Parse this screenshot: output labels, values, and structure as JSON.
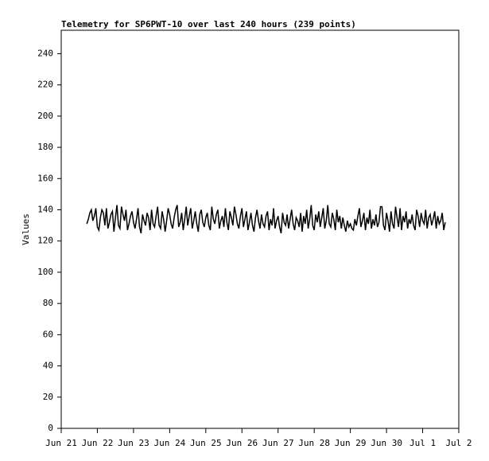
{
  "chart_data": {
    "type": "line",
    "title": "Telemetry for SP6PWT-10 over last 240 hours (239 points)",
    "y_label": "Values",
    "xlim": [
      0,
      264
    ],
    "xticks": [
      {
        "value": 0,
        "label": "Jun 21"
      },
      {
        "value": 24,
        "label": "Jun 22"
      },
      {
        "value": 48,
        "label": "Jun 23"
      },
      {
        "value": 72,
        "label": "Jun 24"
      },
      {
        "value": 96,
        "label": "Jun 25"
      },
      {
        "value": 120,
        "label": "Jun 26"
      },
      {
        "value": 144,
        "label": "Jun 27"
      },
      {
        "value": 168,
        "label": "Jun 28"
      },
      {
        "value": 192,
        "label": "Jun 29"
      },
      {
        "value": 216,
        "label": "Jun 30"
      },
      {
        "value": 240,
        "label": "Jul 1"
      },
      {
        "value": 264,
        "label": "Jul 2"
      }
    ],
    "ylim": [
      0,
      255
    ],
    "yticks": [
      0,
      20,
      40,
      60,
      80,
      100,
      120,
      140,
      160,
      180,
      200,
      220,
      240
    ],
    "color": "#000000",
    "x": [
      17,
      18,
      19,
      20,
      21,
      22,
      23,
      24,
      25,
      26,
      27,
      28,
      29,
      30,
      31,
      32,
      33,
      34,
      35,
      36,
      37,
      38,
      39,
      40,
      41,
      42,
      43,
      44,
      45,
      46,
      47,
      48,
      49,
      50,
      51,
      52,
      53,
      54,
      55,
      56,
      57,
      58,
      59,
      60,
      61,
      62,
      63,
      64,
      65,
      66,
      67,
      68,
      69,
      70,
      71,
      72,
      73,
      74,
      75,
      76,
      77,
      78,
      79,
      80,
      81,
      82,
      83,
      84,
      85,
      86,
      87,
      88,
      89,
      90,
      91,
      92,
      93,
      94,
      95,
      96,
      97,
      98,
      99,
      100,
      101,
      102,
      103,
      104,
      105,
      106,
      107,
      108,
      109,
      110,
      111,
      112,
      113,
      114,
      115,
      116,
      117,
      118,
      119,
      120,
      121,
      122,
      123,
      124,
      125,
      126,
      127,
      128,
      129,
      130,
      131,
      132,
      133,
      134,
      135,
      136,
      137,
      138,
      139,
      140,
      141,
      142,
      143,
      144,
      145,
      146,
      147,
      148,
      149,
      150,
      151,
      152,
      153,
      154,
      155,
      156,
      157,
      158,
      159,
      160,
      161,
      162,
      163,
      164,
      165,
      166,
      167,
      168,
      169,
      170,
      171,
      172,
      173,
      174,
      175,
      176,
      177,
      178,
      179,
      180,
      181,
      182,
      183,
      184,
      185,
      186,
      187,
      188,
      189,
      190,
      191,
      192,
      193,
      194,
      195,
      196,
      197,
      198,
      199,
      200,
      201,
      202,
      203,
      204,
      205,
      206,
      207,
      208,
      209,
      210,
      211,
      212,
      213,
      214,
      215,
      216,
      217,
      218,
      219,
      220,
      221,
      222,
      223,
      224,
      225,
      226,
      227,
      228,
      229,
      230,
      231,
      232,
      233,
      234,
      235,
      236,
      237,
      238,
      239,
      240,
      241,
      242,
      243,
      244,
      245,
      246,
      247,
      248,
      249,
      250,
      251,
      252,
      253,
      254,
      255
    ],
    "values": [
      131,
      134,
      138,
      140,
      133,
      136,
      141,
      129,
      127,
      135,
      140,
      138,
      130,
      141,
      128,
      132,
      137,
      139,
      126,
      135,
      143,
      130,
      128,
      142,
      137,
      133,
      140,
      127,
      131,
      136,
      139,
      132,
      128,
      134,
      141,
      129,
      125,
      137,
      133,
      130,
      138,
      135,
      127,
      140,
      131,
      129,
      136,
      142,
      130,
      128,
      139,
      134,
      126,
      133,
      141,
      137,
      131,
      128,
      135,
      140,
      143,
      129,
      132,
      138,
      127,
      134,
      142,
      130,
      136,
      141,
      128,
      133,
      139,
      131,
      126,
      137,
      140,
      132,
      129,
      135,
      138,
      130,
      127,
      142,
      134,
      131,
      137,
      140,
      128,
      133,
      136,
      129,
      141,
      132,
      127,
      139,
      135,
      130,
      142,
      137,
      131,
      128,
      136,
      141,
      129,
      134,
      139,
      127,
      132,
      138,
      130,
      126,
      135,
      140,
      133,
      128,
      137,
      131,
      129,
      136,
      139,
      127,
      134,
      130,
      141,
      128,
      133,
      136,
      129,
      125,
      138,
      132,
      130,
      137,
      128,
      134,
      140,
      131,
      127,
      135,
      133,
      129,
      138,
      126,
      136,
      131,
      140,
      128,
      134,
      143,
      130,
      127,
      137,
      132,
      139,
      129,
      135,
      141,
      128,
      133,
      143,
      131,
      129,
      138,
      134,
      127,
      140,
      132,
      136,
      128,
      135,
      130,
      126,
      133,
      129,
      131,
      128,
      127,
      134,
      130,
      136,
      141,
      129,
      133,
      138,
      127,
      135,
      131,
      140,
      128,
      134,
      130,
      137,
      129,
      132,
      142,
      142,
      130,
      127,
      138,
      133,
      126,
      139,
      131,
      128,
      142,
      135,
      129,
      141,
      127,
      136,
      132,
      139,
      128,
      134,
      131,
      137,
      130,
      127,
      140,
      136,
      129,
      138,
      133,
      131,
      140,
      128,
      135,
      137,
      130,
      134,
      139,
      128,
      136,
      131,
      133,
      138,
      127,
      132
    ]
  }
}
